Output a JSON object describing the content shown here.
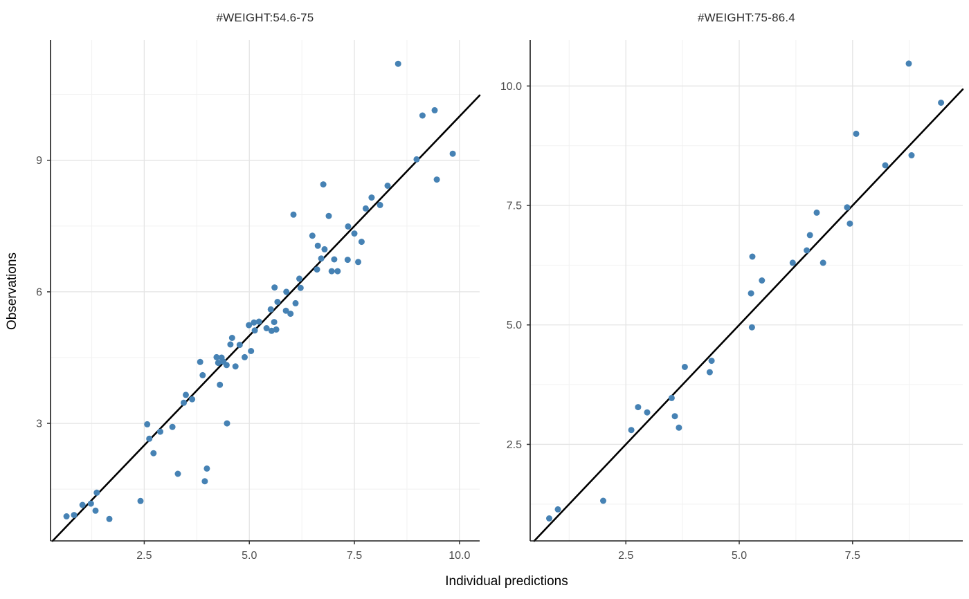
{
  "axes": {
    "x_label": "Individual predictions",
    "y_label": "Observations"
  },
  "colors": {
    "point": "#4682b4",
    "identity_line": "#000000",
    "grid_major": "#e4e4e4",
    "grid_minor": "#f2f2f2",
    "axis_line": "#1a1a1a",
    "tick_mark": "#333333",
    "tick_text": "#4d4d4d",
    "strip_text": "#2e2e2e",
    "panel_bg": "#ffffff"
  },
  "chart_data": [
    {
      "type": "scatter",
      "title": "#WEIGHT:54.6-75",
      "xlabel": "Individual predictions",
      "ylabel": "Observations",
      "xlim": [
        0.27,
        10.48
      ],
      "ylim": [
        0.32,
        11.74
      ],
      "x_ticks": [
        2.5,
        5.0,
        7.5,
        10.0
      ],
      "x_tick_labels": [
        "2.5",
        "5.0",
        "7.5",
        "10.0"
      ],
      "y_ticks": [
        3,
        6,
        9
      ],
      "y_tick_labels": [
        "3",
        "6",
        "9"
      ],
      "x_minor": [
        1.25,
        3.75,
        6.25,
        8.75
      ],
      "y_minor": [
        1.5,
        4.5,
        7.5,
        10.5
      ],
      "grid": true,
      "legend": "none",
      "identity_line": {
        "slope": 1,
        "intercept": 0
      },
      "points": [
        [
          0.65,
          0.88
        ],
        [
          0.83,
          0.91
        ],
        [
          1.03,
          1.14
        ],
        [
          1.23,
          1.17
        ],
        [
          1.34,
          1.01
        ],
        [
          1.37,
          1.42
        ],
        [
          1.67,
          0.82
        ],
        [
          2.41,
          1.23
        ],
        [
          2.72,
          2.32
        ],
        [
          3.3,
          1.85
        ],
        [
          3.94,
          1.68
        ],
        [
          3.99,
          1.97
        ],
        [
          2.57,
          2.98
        ],
        [
          2.62,
          2.65
        ],
        [
          2.88,
          2.81
        ],
        [
          3.17,
          2.92
        ],
        [
          3.44,
          3.47
        ],
        [
          3.49,
          3.65
        ],
        [
          3.64,
          3.55
        ],
        [
          4.47,
          3.0
        ],
        [
          3.89,
          4.1
        ],
        [
          4.3,
          3.88
        ],
        [
          3.83,
          4.4
        ],
        [
          4.22,
          4.51
        ],
        [
          4.34,
          4.5
        ],
        [
          4.26,
          4.38
        ],
        [
          4.38,
          4.41
        ],
        [
          4.46,
          4.33
        ],
        [
          4.67,
          4.3
        ],
        [
          4.59,
          4.95
        ],
        [
          4.55,
          4.8
        ],
        [
          4.77,
          4.79
        ],
        [
          4.89,
          4.51
        ],
        [
          5.04,
          4.65
        ],
        [
          4.99,
          5.24
        ],
        [
          5.11,
          5.3
        ],
        [
          5.23,
          5.32
        ],
        [
          5.13,
          5.12
        ],
        [
          5.41,
          5.17
        ],
        [
          5.53,
          5.11
        ],
        [
          5.64,
          5.14
        ],
        [
          5.59,
          5.31
        ],
        [
          5.51,
          5.6
        ],
        [
          5.87,
          5.57
        ],
        [
          5.98,
          5.5
        ],
        [
          5.67,
          5.77
        ],
        [
          6.1,
          5.74
        ],
        [
          5.88,
          6.0
        ],
        [
          5.6,
          6.1
        ],
        [
          6.19,
          6.3
        ],
        [
          6.22,
          6.09
        ],
        [
          6.61,
          6.51
        ],
        [
          6.96,
          6.47
        ],
        [
          7.1,
          6.47
        ],
        [
          6.71,
          6.76
        ],
        [
          7.02,
          6.74
        ],
        [
          7.34,
          6.73
        ],
        [
          7.59,
          6.68
        ],
        [
          6.5,
          7.28
        ],
        [
          6.63,
          7.05
        ],
        [
          6.79,
          6.97
        ],
        [
          6.05,
          7.76
        ],
        [
          6.89,
          7.73
        ],
        [
          7.35,
          7.49
        ],
        [
          7.5,
          7.33
        ],
        [
          7.67,
          7.14
        ],
        [
          6.76,
          8.45
        ],
        [
          7.91,
          8.15
        ],
        [
          8.11,
          7.98
        ],
        [
          7.77,
          7.9
        ],
        [
          8.29,
          8.42
        ],
        [
          8.98,
          9.02
        ],
        [
          9.46,
          8.56
        ],
        [
          9.84,
          9.15
        ],
        [
          9.12,
          10.02
        ],
        [
          9.41,
          10.14
        ],
        [
          8.54,
          11.2
        ]
      ]
    },
    {
      "type": "scatter",
      "title": "#WEIGHT:75-86.4",
      "xlabel": "Individual predictions",
      "ylabel": "Observations",
      "xlim": [
        0.39,
        9.93
      ],
      "ylim": [
        0.48,
        10.96
      ],
      "x_ticks": [
        2.5,
        5.0,
        7.5
      ],
      "x_tick_labels": [
        "2.5",
        "5.0",
        "7.5"
      ],
      "y_ticks": [
        2.5,
        5.0,
        7.5,
        10.0
      ],
      "y_tick_labels": [
        "2.5",
        "5.0",
        "7.5",
        "10.0"
      ],
      "x_minor": [
        1.25,
        3.75,
        6.25,
        8.75
      ],
      "y_minor": [
        1.25,
        3.75,
        6.25,
        8.75
      ],
      "grid": true,
      "legend": "none",
      "identity_line": {
        "slope": 1,
        "intercept": 0
      },
      "points": [
        [
          0.81,
          0.95
        ],
        [
          1.0,
          1.14
        ],
        [
          2.0,
          1.32
        ],
        [
          2.62,
          2.8
        ],
        [
          2.77,
          3.28
        ],
        [
          2.97,
          3.17
        ],
        [
          3.51,
          3.47
        ],
        [
          3.58,
          3.09
        ],
        [
          3.67,
          2.85
        ],
        [
          3.8,
          4.12
        ],
        [
          4.35,
          4.01
        ],
        [
          4.39,
          4.25
        ],
        [
          5.26,
          5.66
        ],
        [
          5.28,
          4.95
        ],
        [
          5.5,
          5.93
        ],
        [
          5.29,
          6.43
        ],
        [
          6.18,
          6.3
        ],
        [
          6.49,
          6.56
        ],
        [
          6.56,
          6.88
        ],
        [
          6.71,
          7.35
        ],
        [
          6.85,
          6.3
        ],
        [
          7.38,
          7.46
        ],
        [
          7.44,
          7.12
        ],
        [
          7.58,
          9.0
        ],
        [
          8.22,
          8.34
        ],
        [
          8.74,
          10.47
        ],
        [
          8.8,
          8.55
        ],
        [
          9.45,
          9.65
        ]
      ]
    }
  ]
}
